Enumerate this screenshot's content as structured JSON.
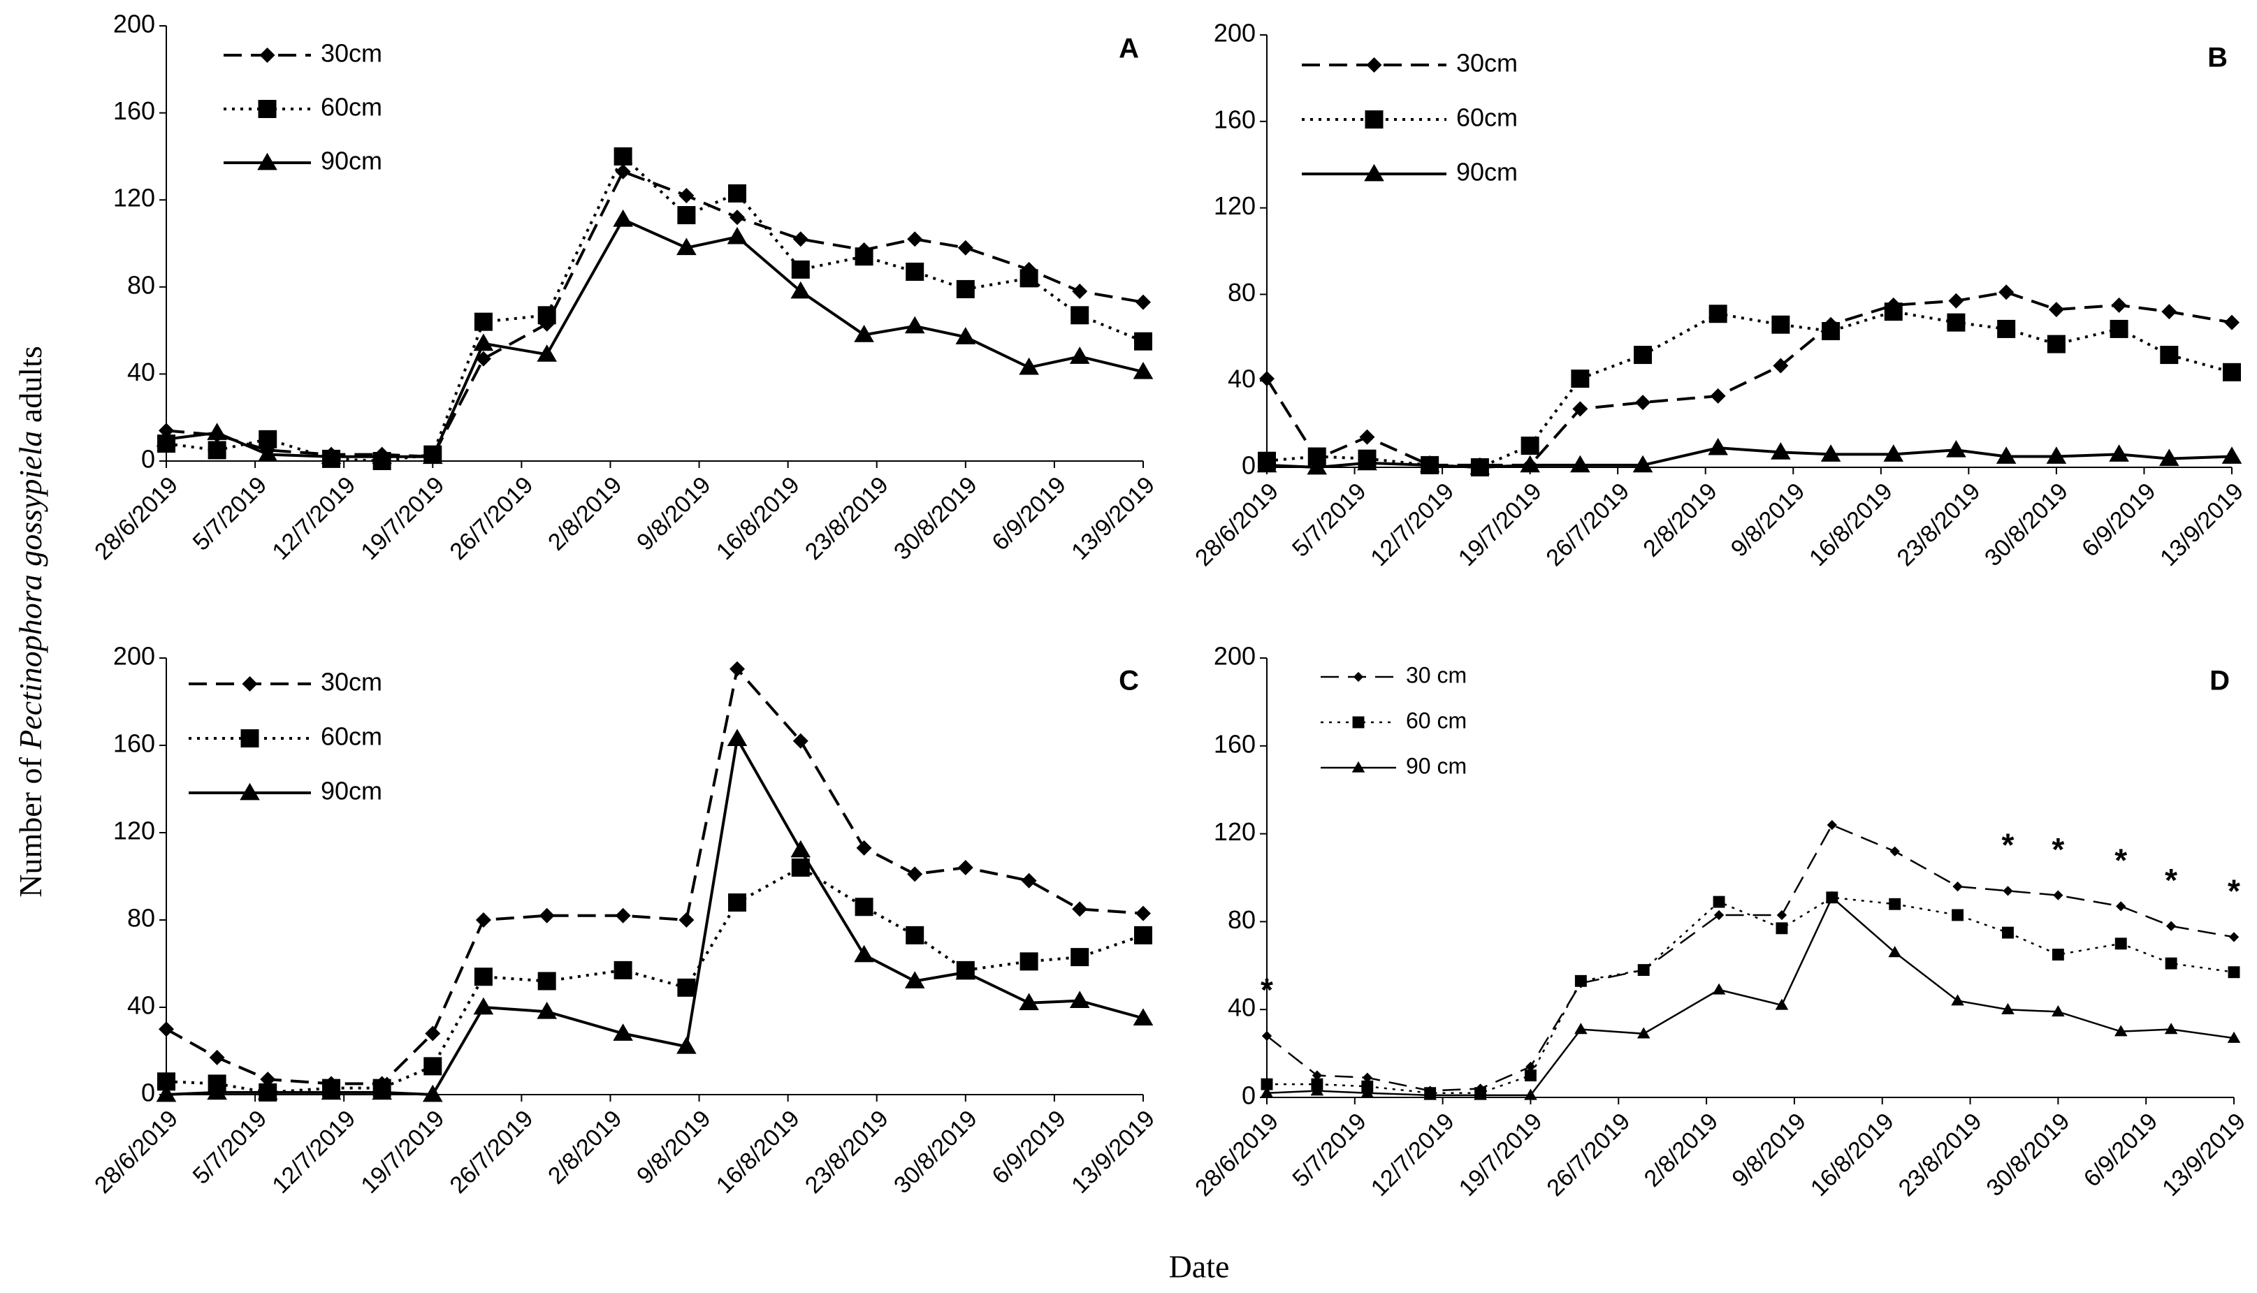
{
  "ylabel": [
    "Number of ",
    "Pectinophora gossypiela",
    " adults"
  ],
  "xlabel": "Date",
  "chart_data": [
    {
      "type": "line",
      "title": "A",
      "x": [
        "28/6/2019",
        "2/7/2019",
        "6/7/2019",
        "11/7/2019",
        "15/7/2019",
        "19/7/2019",
        "23/7/2019",
        "28/7/2019",
        "3/8/2019",
        "8/8/2019",
        "12/8/2019",
        "17/8/2019",
        "22/8/2019",
        "26/8/2019",
        "30/8/2019",
        "4/9/2019",
        "8/9/2019",
        "13/9/2019"
      ],
      "xlim": [
        "28/6/2019",
        "13/9/2019"
      ],
      "xticks": [
        "28/6/2019",
        "5/7/2019",
        "12/7/2019",
        "19/7/2019",
        "26/7/2019",
        "2/8/2019",
        "9/8/2019",
        "16/8/2019",
        "23/8/2019",
        "30/8/2019",
        "6/9/2019",
        "13/9/2019"
      ],
      "ylim": [
        0,
        200
      ],
      "yticks": [
        0,
        40,
        80,
        120,
        160,
        200
      ],
      "series": [
        {
          "name": "30cm",
          "color": "#000000",
          "style": "dashed",
          "marker": "diamond",
          "values": [
            14,
            12,
            5,
            3,
            3,
            2,
            47,
            63,
            133,
            122,
            112,
            102,
            97,
            102,
            98,
            88,
            78,
            73
          ]
        },
        {
          "name": "60cm",
          "color": "#000000",
          "style": "dotted",
          "marker": "square",
          "values": [
            8,
            5,
            10,
            1,
            0,
            3,
            64,
            67,
            140,
            113,
            123,
            88,
            94,
            87,
            79,
            84,
            67,
            55
          ]
        },
        {
          "name": "90cm",
          "color": "#000000",
          "style": "solid",
          "marker": "triangle",
          "values": [
            10,
            13,
            3,
            2,
            2,
            2,
            54,
            49,
            111,
            98,
            103,
            78,
            58,
            62,
            57,
            43,
            48,
            41
          ]
        }
      ]
    },
    {
      "type": "line",
      "title": "B",
      "x": [
        "28/6/2019",
        "2/7/2019",
        "6/7/2019",
        "11/7/2019",
        "15/7/2019",
        "19/7/2019",
        "23/7/2019",
        "28/7/2019",
        "3/8/2019",
        "8/8/2019",
        "12/8/2019",
        "17/8/2019",
        "22/8/2019",
        "26/8/2019",
        "30/8/2019",
        "4/9/2019",
        "8/9/2019",
        "13/9/2019"
      ],
      "xlim": [
        "28/6/2019",
        "13/9/2019"
      ],
      "xticks": [
        "28/6/2019",
        "5/7/2019",
        "12/7/2019",
        "19/7/2019",
        "26/7/2019",
        "2/8/2019",
        "9/8/2019",
        "16/8/2019",
        "23/8/2019",
        "30/8/2019",
        "6/9/2019",
        "13/9/2019"
      ],
      "ylim": [
        0,
        200
      ],
      "yticks": [
        0,
        40,
        80,
        120,
        160,
        200
      ],
      "series": [
        {
          "name": "30cm",
          "color": "#000000",
          "style": "dashed",
          "marker": "diamond",
          "values": [
            41,
            4,
            14,
            1,
            1,
            1,
            27,
            30,
            33,
            47,
            66,
            75,
            77,
            81,
            73,
            75,
            72,
            67
          ]
        },
        {
          "name": "60cm",
          "color": "#000000",
          "style": "dotted",
          "marker": "square",
          "values": [
            3,
            5,
            4,
            1,
            0,
            10,
            41,
            52,
            71,
            66,
            63,
            72,
            67,
            64,
            57,
            64,
            52,
            44
          ]
        },
        {
          "name": "90cm",
          "color": "#000000",
          "style": "solid",
          "marker": "triangle",
          "values": [
            1,
            0,
            2,
            1,
            0,
            1,
            1,
            1,
            9,
            7,
            6,
            6,
            8,
            5,
            5,
            6,
            4,
            5
          ]
        }
      ]
    },
    {
      "type": "line",
      "title": "C",
      "x": [
        "28/6/2019",
        "2/7/2019",
        "6/7/2019",
        "11/7/2019",
        "15/7/2019",
        "19/7/2019",
        "23/7/2019",
        "28/7/2019",
        "3/8/2019",
        "8/8/2019",
        "12/8/2019",
        "17/8/2019",
        "22/8/2019",
        "26/8/2019",
        "30/8/2019",
        "4/9/2019",
        "8/9/2019",
        "13/9/2019"
      ],
      "xlim": [
        "28/6/2019",
        "13/9/2019"
      ],
      "xticks": [
        "28/6/2019",
        "5/7/2019",
        "12/7/2019",
        "19/7/2019",
        "26/7/2019",
        "2/8/2019",
        "9/8/2019",
        "16/8/2019",
        "23/8/2019",
        "30/8/2019",
        "6/9/2019",
        "13/9/2019"
      ],
      "ylim": [
        0,
        200
      ],
      "yticks": [
        0,
        40,
        80,
        120,
        160,
        200
      ],
      "series": [
        {
          "name": "30cm",
          "color": "#000000",
          "style": "dashed",
          "marker": "diamond",
          "values": [
            30,
            17,
            7,
            5,
            5,
            28,
            80,
            82,
            82,
            80,
            195,
            162,
            113,
            101,
            104,
            98,
            85,
            83
          ]
        },
        {
          "name": "60cm",
          "color": "#000000",
          "style": "dotted",
          "marker": "square",
          "values": [
            6,
            5,
            1,
            3,
            3,
            13,
            54,
            52,
            57,
            49,
            88,
            104,
            86,
            73,
            57,
            61,
            63,
            73
          ]
        },
        {
          "name": "90cm",
          "color": "#000000",
          "style": "solid",
          "marker": "triangle",
          "values": [
            0,
            1,
            1,
            1,
            1,
            0,
            40,
            38,
            28,
            22,
            163,
            112,
            64,
            52,
            56,
            42,
            43,
            35
          ]
        }
      ]
    },
    {
      "type": "line",
      "title": "D",
      "x": [
        "28/6/2019",
        "2/7/2019",
        "6/7/2019",
        "11/7/2019",
        "15/7/2019",
        "19/7/2019",
        "23/7/2019",
        "28/7/2019",
        "3/8/2019",
        "8/8/2019",
        "12/8/2019",
        "17/8/2019",
        "22/8/2019",
        "26/8/2019",
        "30/8/2019",
        "4/9/2019",
        "8/9/2019",
        "13/9/2019"
      ],
      "xlim": [
        "28/6/2019",
        "13/9/2019"
      ],
      "xticks": [
        "28/6/2019",
        "5/7/2019",
        "12/7/2019",
        "19/7/2019",
        "26/7/2019",
        "2/8/2019",
        "9/8/2019",
        "16/8/2019",
        "23/8/2019",
        "30/8/2019",
        "6/9/2019",
        "13/9/2019"
      ],
      "ylim": [
        0,
        200
      ],
      "yticks": [
        0,
        40,
        80,
        120,
        160,
        200
      ],
      "series": [
        {
          "name": "30 cm",
          "color": "#000000",
          "style": "dashed",
          "marker": "diamond",
          "values": [
            28,
            10,
            9,
            3,
            4,
            14,
            52,
            58,
            83,
            83,
            124,
            112,
            96,
            94,
            92,
            87,
            78,
            73
          ]
        },
        {
          "name": "60 cm",
          "color": "#000000",
          "style": "dotted",
          "marker": "square",
          "values": [
            6,
            6,
            5,
            2,
            2,
            10,
            53,
            58,
            89,
            77,
            91,
            88,
            83,
            75,
            65,
            70,
            61,
            57
          ]
        },
        {
          "name": "90 cm",
          "color": "#000000",
          "style": "solid",
          "marker": "triangle",
          "values": [
            2,
            3,
            2,
            1,
            1,
            1,
            31,
            29,
            49,
            42,
            91,
            66,
            44,
            40,
            39,
            30,
            31,
            27
          ]
        }
      ],
      "annotations": [
        {
          "text": "*",
          "x": "28/6/2019"
        },
        {
          "text": "*",
          "x": "26/8/2019"
        },
        {
          "text": "*",
          "x": "30/8/2019"
        },
        {
          "text": "*",
          "x": "4/9/2019"
        },
        {
          "text": "*",
          "x": "8/9/2019"
        },
        {
          "text": "*",
          "x": "13/9/2019"
        }
      ]
    }
  ]
}
